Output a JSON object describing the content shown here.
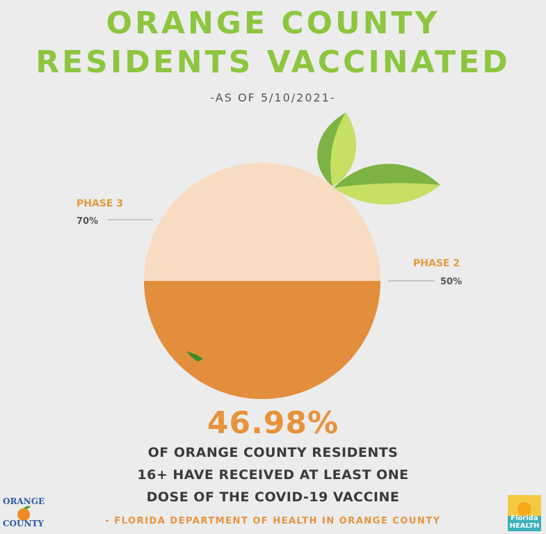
{
  "header": {
    "title_line1": "ORANGE COUNTY",
    "title_line2": "RESIDENTS VACCINATED",
    "subtitle": "-AS OF 5/10/2021-"
  },
  "chart_data": {
    "type": "pie",
    "title": "ORANGE COUNTY RESIDENTS VACCINATED",
    "slices": [
      {
        "label": "PHASE 3",
        "value": 70,
        "display": "70%"
      },
      {
        "label": "PHASE 2",
        "value": 50,
        "display": "50%"
      }
    ],
    "fill_fraction": 0.5,
    "colors": {
      "upper": "#f8dcc2",
      "lower": "#e38e3d",
      "leaf_dark": "#7cb342",
      "leaf_light": "#c5e063"
    }
  },
  "stat": {
    "value": "46.98%",
    "line1": "OF ORANGE COUNTY RESIDENTS",
    "line2": "16+ HAVE RECEIVED AT LEAST ONE",
    "line3": "DOSE OF THE COVID-19 VACCINE"
  },
  "footer": {
    "source": "- FLORIDA DEPARTMENT OF HEALTH IN ORANGE COUNTY",
    "logo_left_line1": "ORANGE",
    "logo_left_line2": "COUNTY",
    "logo_right_line1": "Florida",
    "logo_right_line2": "HEALTH"
  },
  "colors": {
    "title_green": "#8cc63f",
    "accent_orange": "#e8923a",
    "background": "#ececec"
  }
}
